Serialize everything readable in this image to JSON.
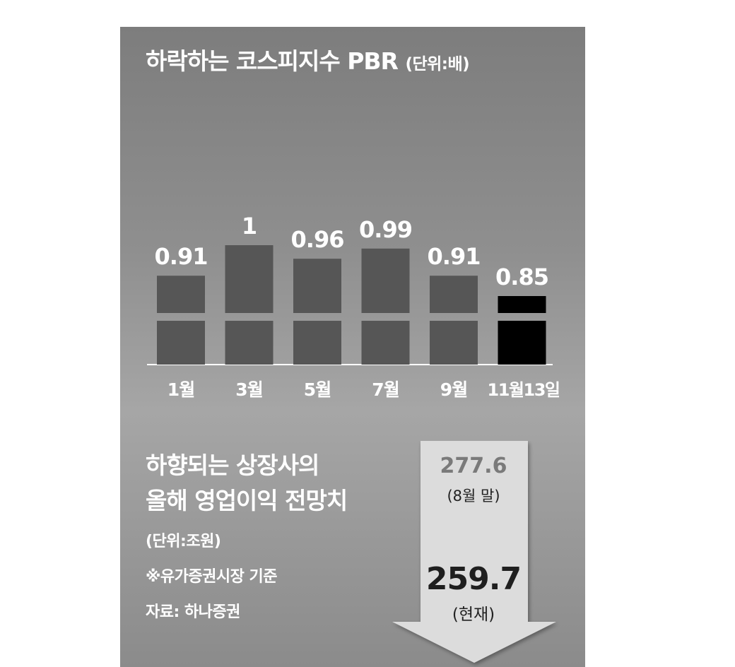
{
  "chart_data": {
    "type": "bar",
    "title": "하락하는 코스피지수 PBR",
    "unit": "(단위:배)",
    "categories": [
      "1월",
      "3월",
      "5월",
      "7월",
      "9월",
      "11월13일"
    ],
    "values": [
      0.91,
      1,
      0.96,
      0.99,
      0.91,
      0.85
    ],
    "value_labels": [
      "0.91",
      "1",
      "0.96",
      "0.99",
      "0.91",
      "0.85"
    ],
    "bar_colors": [
      "#565656",
      "#565656",
      "#565656",
      "#565656",
      "#565656",
      "#000000"
    ],
    "axis_break": true
  },
  "forecast": {
    "title_line1": "하향되는 상장사의",
    "title_line2": "올해 영업이익 전망치",
    "unit": "(단위:조원)",
    "note": "※유가증권시장 기준",
    "source": "자료: 하나증권",
    "before_value": "277.6",
    "before_label": "(8월 말)",
    "after_value": "259.7",
    "after_label": "(현재)",
    "arrow_color": "#dcdcdc"
  }
}
